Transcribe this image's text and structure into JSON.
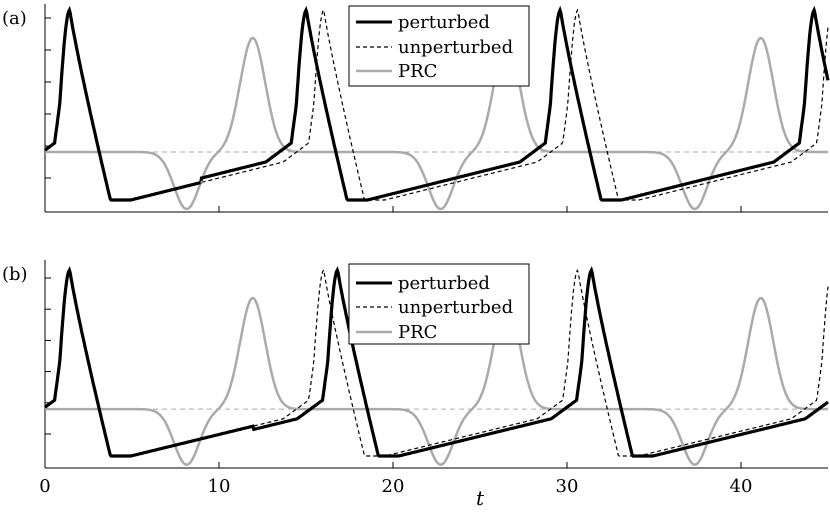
{
  "chart_data": [
    {
      "type": "line",
      "panel_label": "(a)",
      "xlabel": "t",
      "xlim": [
        0,
        45
      ],
      "xticks": [
        0,
        10,
        20,
        30,
        40
      ],
      "yticks_count": 6,
      "legend": {
        "placement": "top-center",
        "entries": [
          "perturbed",
          "unperturbed",
          "PRC"
        ]
      },
      "dashed_reference": "horizontal baseline",
      "series": [
        {
          "name": "perturbed",
          "style": "thick-solid",
          "color": "#000000",
          "period": 14.6,
          "phase_offsets": [
            [
              0,
              0
            ],
            [
              9,
              1.0
            ]
          ]
        },
        {
          "name": "unperturbed",
          "style": "dashed",
          "color": "#000000",
          "period": 14.6,
          "phase_offsets": [
            [
              0,
              0
            ]
          ]
        },
        {
          "name": "PRC",
          "style": "solid",
          "color": "#aaaaaa",
          "period": 14.6
        }
      ],
      "perturbation_marker_t": 9
    },
    {
      "type": "line",
      "panel_label": "(b)",
      "xlabel": "t",
      "xlim": [
        0,
        45
      ],
      "xticks": [
        0,
        10,
        20,
        30,
        40
      ],
      "yticks_count": 6,
      "legend": {
        "placement": "top-center",
        "entries": [
          "perturbed",
          "unperturbed",
          "PRC"
        ]
      },
      "dashed_reference": "horizontal baseline",
      "series": [
        {
          "name": "perturbed",
          "style": "thick-solid",
          "color": "#000000",
          "period": 14.6,
          "phase_offsets": [
            [
              0,
              0
            ],
            [
              12,
              -0.8
            ]
          ]
        },
        {
          "name": "unperturbed",
          "style": "dashed",
          "color": "#000000",
          "period": 14.6,
          "phase_offsets": [
            [
              0,
              0
            ]
          ]
        },
        {
          "name": "PRC",
          "style": "solid",
          "color": "#aaaaaa",
          "period": 14.6
        }
      ],
      "perturbation_marker_t": 12
    }
  ]
}
